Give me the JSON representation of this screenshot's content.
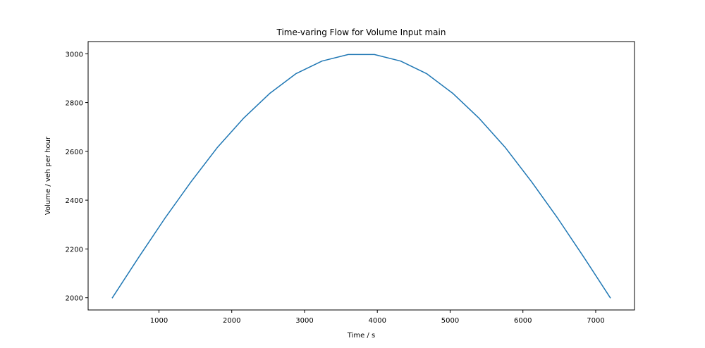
{
  "chart_data": {
    "type": "line",
    "title": "Time-varing Flow for Volume Input main",
    "xlabel": "Time / s",
    "ylabel": "Volume / veh per hour",
    "xlim": [
      27,
      7533
    ],
    "ylim": [
      1950,
      3050
    ],
    "xticks": [
      1000,
      2000,
      3000,
      4000,
      5000,
      6000,
      7000
    ],
    "yticks": [
      2000,
      2200,
      2400,
      2600,
      2800,
      3000
    ],
    "grid": false,
    "series": [
      {
        "color": "#1f77b4",
        "x": [
          360,
          720,
          1080,
          1440,
          1800,
          2160,
          2520,
          2880,
          3240,
          3600,
          3960,
          4320,
          4680,
          5040,
          5400,
          5760,
          6120,
          6480,
          6840,
          7200
        ],
        "y": [
          2000,
          2165,
          2325,
          2475,
          2615,
          2735,
          2837,
          2918,
          2970,
          2997,
          2997,
          2970,
          2918,
          2837,
          2735,
          2615,
          2475,
          2325,
          2165,
          2000
        ]
      }
    ]
  }
}
